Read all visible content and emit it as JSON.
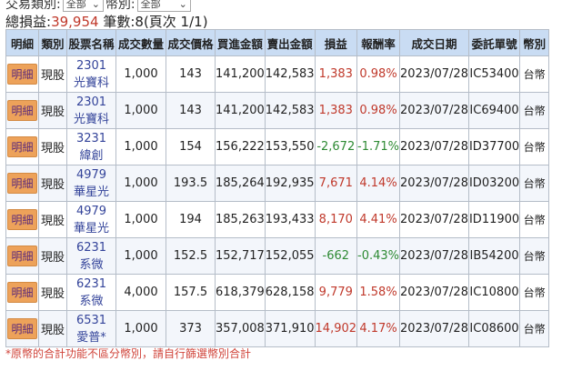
{
  "filters": {
    "trade_type_label": "交易類別:",
    "trade_type_value": "全部",
    "currency_label": "幣別:",
    "currency_value": "全部"
  },
  "summary": {
    "pnl_label": "總損益:",
    "pnl_value": "39,954",
    "count_text": "筆數:8(頁次 1/1)"
  },
  "headers": [
    "明細",
    "類別",
    "股票名稱",
    "成交數量",
    "成交價格",
    "買進金額",
    "賣出金額",
    "損益",
    "報酬率",
    "成交日期",
    "委託單號",
    "幣別"
  ],
  "colors": {
    "positive": "#c0392b",
    "negative": "#2e8a34",
    "header_bg": "#c9dcf3",
    "detail_button": "#eda25a"
  },
  "rows": [
    {
      "detail": "明細",
      "type": "現股",
      "code": "2301",
      "name": "光寶科",
      "qty": "1,000",
      "price": "143",
      "buy": "141,200",
      "sell": "142,583",
      "pnl": "1,383",
      "ret": "0.98%",
      "date": "2023/07/28",
      "order": "IC53400",
      "cur": "台幣",
      "sign": "pos"
    },
    {
      "detail": "明細",
      "type": "現股",
      "code": "2301",
      "name": "光寶科",
      "qty": "1,000",
      "price": "143",
      "buy": "141,200",
      "sell": "142,583",
      "pnl": "1,383",
      "ret": "0.98%",
      "date": "2023/07/28",
      "order": "IC69400",
      "cur": "台幣",
      "sign": "pos"
    },
    {
      "detail": "明細",
      "type": "現股",
      "code": "3231",
      "name": "緯創",
      "qty": "1,000",
      "price": "154",
      "buy": "156,222",
      "sell": "153,550",
      "pnl": "-2,672",
      "ret": "-1.71%",
      "date": "2023/07/28",
      "order": "ID37700",
      "cur": "台幣",
      "sign": "neg"
    },
    {
      "detail": "明細",
      "type": "現股",
      "code": "4979",
      "name": "華星光",
      "qty": "1,000",
      "price": "193.5",
      "buy": "185,264",
      "sell": "192,935",
      "pnl": "7,671",
      "ret": "4.14%",
      "date": "2023/07/28",
      "order": "ID03200",
      "cur": "台幣",
      "sign": "pos"
    },
    {
      "detail": "明細",
      "type": "現股",
      "code": "4979",
      "name": "華星光",
      "qty": "1,000",
      "price": "194",
      "buy": "185,263",
      "sell": "193,433",
      "pnl": "8,170",
      "ret": "4.41%",
      "date": "2023/07/28",
      "order": "ID11900",
      "cur": "台幣",
      "sign": "pos"
    },
    {
      "detail": "明細",
      "type": "現股",
      "code": "6231",
      "name": "系微",
      "qty": "1,000",
      "price": "152.5",
      "buy": "152,717",
      "sell": "152,055",
      "pnl": "-662",
      "ret": "-0.43%",
      "date": "2023/07/28",
      "order": "IB54200",
      "cur": "台幣",
      "sign": "neg"
    },
    {
      "detail": "明細",
      "type": "現股",
      "code": "6231",
      "name": "系微",
      "qty": "4,000",
      "price": "157.5",
      "buy": "618,379",
      "sell": "628,158",
      "pnl": "9,779",
      "ret": "1.58%",
      "date": "2023/07/28",
      "order": "IC10800",
      "cur": "台幣",
      "sign": "pos"
    },
    {
      "detail": "明細",
      "type": "現股",
      "code": "6531",
      "name": "愛普*",
      "qty": "1,000",
      "price": "373",
      "buy": "357,008",
      "sell": "371,910",
      "pnl": "14,902",
      "ret": "4.17%",
      "date": "2023/07/28",
      "order": "IC08600",
      "cur": "台幣",
      "sign": "pos"
    }
  ],
  "note": "*原幣的合計功能不區分幣別，請自行篩選幣別合計"
}
